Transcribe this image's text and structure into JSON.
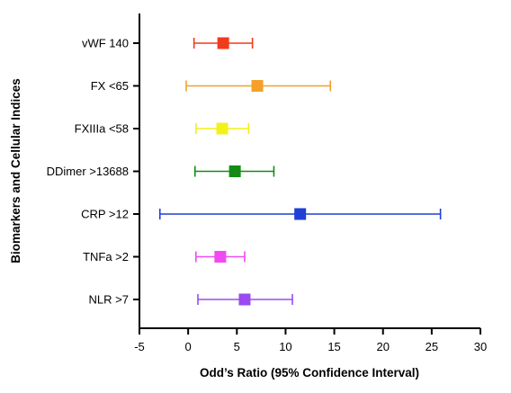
{
  "chart_data": {
    "type": "forest",
    "xlabel": "Odd’s Ratio (95% Confidence Interval)",
    "ylabel": "Biomarkers and Cellular Indices",
    "xlim": [
      -5,
      30
    ],
    "xticks": [
      -5,
      0,
      5,
      10,
      15,
      20,
      25,
      30
    ],
    "xtick_labels": [
      "-5",
      "0",
      "5",
      "10",
      "15",
      "20",
      "25",
      "30"
    ],
    "grid": false,
    "legend": "none",
    "marker": "square",
    "categories": [
      "vWF 140",
      "FX <65",
      "FXIIIa <58",
      "DDimer >13688",
      "CRP >12",
      "TNFa >2",
      "NLR >7"
    ],
    "series": [
      {
        "category": "vWF 140",
        "estimate": 3.6,
        "ci_low": 0.6,
        "ci_high": 6.6,
        "color": "#f23a1c"
      },
      {
        "category": "FX <65",
        "estimate": 7.1,
        "ci_low": -0.2,
        "ci_high": 14.6,
        "color": "#f4a02a"
      },
      {
        "category": "FXIIIa <58",
        "estimate": 3.5,
        "ci_low": 0.8,
        "ci_high": 6.2,
        "color": "#f2f21a"
      },
      {
        "category": "DDimer >13688",
        "estimate": 4.8,
        "ci_low": 0.7,
        "ci_high": 8.8,
        "color": "#138a13"
      },
      {
        "category": "CRP >12",
        "estimate": 11.5,
        "ci_low": -2.9,
        "ci_high": 25.9,
        "color": "#1f3fd6"
      },
      {
        "category": "TNFa >2",
        "estimate": 3.3,
        "ci_low": 0.8,
        "ci_high": 5.8,
        "color": "#f24af2"
      },
      {
        "category": "NLR >7",
        "estimate": 5.8,
        "ci_low": 1.0,
        "ci_high": 10.7,
        "color": "#9a4af0"
      }
    ]
  }
}
